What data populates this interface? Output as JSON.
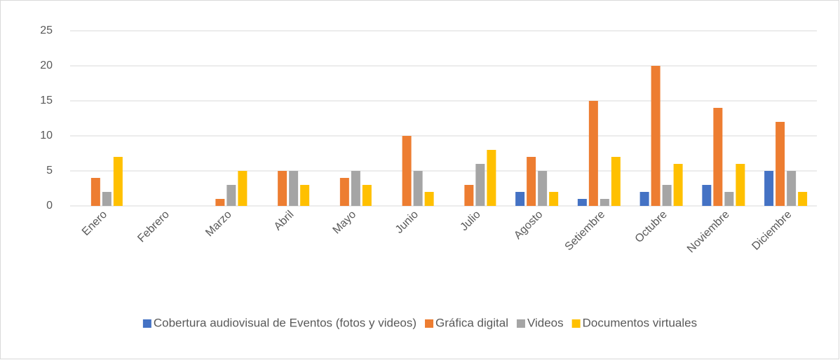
{
  "chart_data": {
    "type": "bar",
    "categories": [
      "Enero",
      "Febrero",
      "Marzo",
      "Abril",
      "Mayo",
      "Junio",
      "Julio",
      "Agosto",
      "Setiembre",
      "Octubre",
      "Noviembre",
      "Diciembre"
    ],
    "series": [
      {
        "name": "Cobertura audiovisual de Eventos (fotos y videos)",
        "color": "#4472c4",
        "values": [
          0,
          0,
          0,
          0,
          0,
          0,
          0,
          2,
          1,
          2,
          3,
          5
        ]
      },
      {
        "name": "Gráfica digital",
        "color": "#ed7d31",
        "values": [
          4,
          0,
          1,
          5,
          4,
          10,
          3,
          7,
          15,
          20,
          14,
          12
        ]
      },
      {
        "name": "Videos",
        "color": "#a5a5a5",
        "values": [
          2,
          0,
          3,
          5,
          5,
          5,
          6,
          5,
          1,
          3,
          2,
          5
        ]
      },
      {
        "name": "Documentos virtuales",
        "color": "#ffc000",
        "values": [
          7,
          0,
          5,
          3,
          3,
          2,
          8,
          2,
          7,
          6,
          6,
          2
        ]
      }
    ],
    "ylim": [
      0,
      25
    ],
    "yticks": [
      0,
      5,
      10,
      15,
      20,
      25
    ],
    "grid": true,
    "legend": "bottom"
  }
}
